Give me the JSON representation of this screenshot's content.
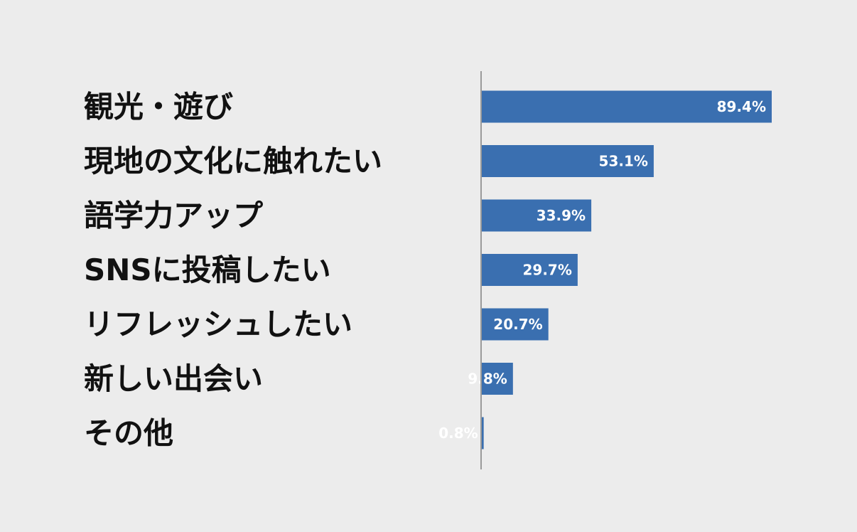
{
  "chart_data": {
    "type": "bar",
    "orientation": "horizontal",
    "categories": [
      "観光・遊び",
      "現地の文化に触れたい",
      "語学力アップ",
      "SNSに投稿したい",
      "リフレッシュしたい",
      "新しい出会い",
      "その他"
    ],
    "values": [
      89.4,
      53.1,
      33.9,
      29.7,
      20.7,
      9.8,
      0.8
    ],
    "value_labels": [
      "89.4%",
      "53.1%",
      "33.9%",
      "29.7%",
      "20.7%",
      "9.8%",
      "0.8%"
    ],
    "unit": "%",
    "xlim": [
      0,
      100
    ],
    "grid": false,
    "legend": "none",
    "bar_color": "#3a6fb0",
    "axis_color": "#9a9a9a",
    "label_color": "#111111",
    "value_label_color": "#ffffff",
    "background": "#ececec"
  }
}
